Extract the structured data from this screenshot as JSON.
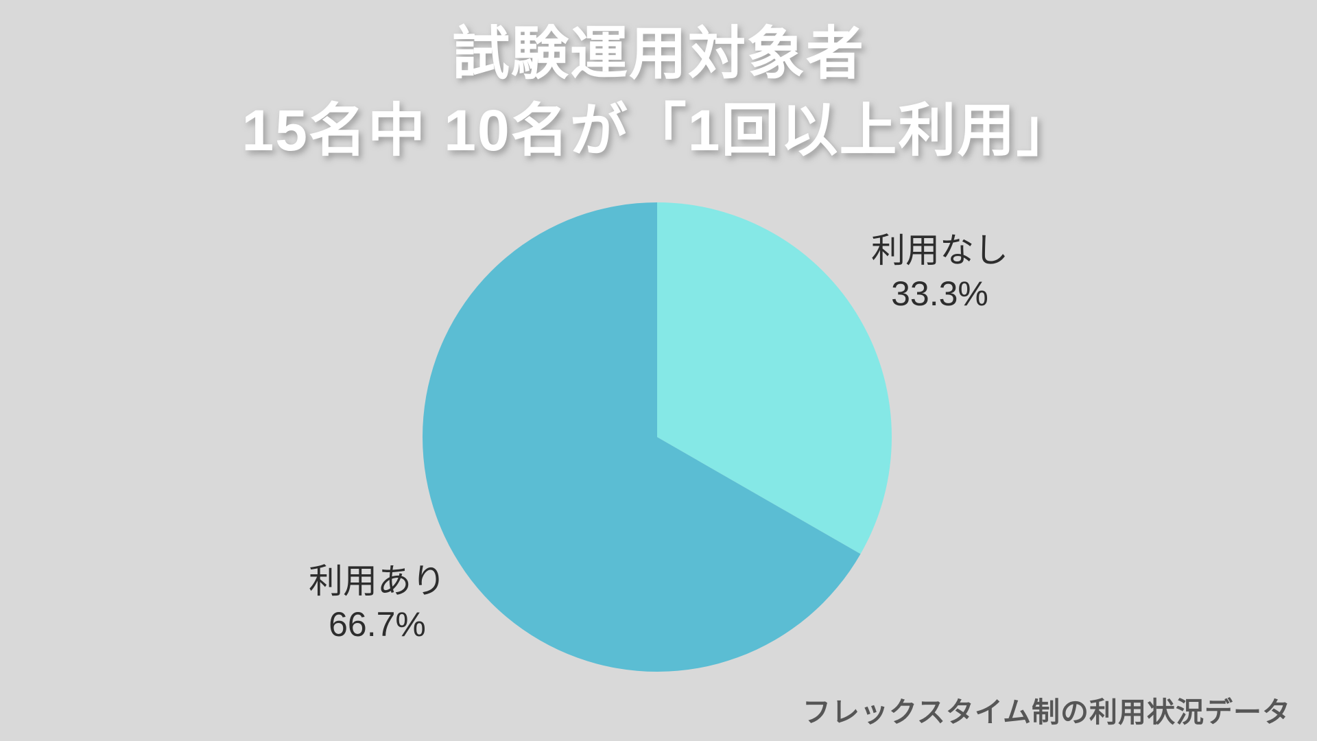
{
  "background_color": "#d9d9d9",
  "title": {
    "line1": "試験運用対象者",
    "line2": "15名中 10名が「1回以上利用」",
    "color": "#ffffff"
  },
  "footer": {
    "text": "フレックスタイム制の利用状況データ",
    "color": "#565656"
  },
  "label_text_color": "#2d2d2d",
  "chart_data": {
    "type": "pie",
    "title": "試験運用対象者 15名中 10名が「1回以上利用」",
    "total_people": 15,
    "used_people": 10,
    "start_angle_deg": 0,
    "direction": "clockwise",
    "legend_position": "outside-labels",
    "slices": [
      {
        "label": "利用なし",
        "percent": 33.3,
        "percent_label": "33.3%",
        "color": "#85e8e6"
      },
      {
        "label": "利用あり",
        "percent": 66.7,
        "percent_label": "66.7%",
        "color": "#5bbdd3"
      }
    ]
  }
}
